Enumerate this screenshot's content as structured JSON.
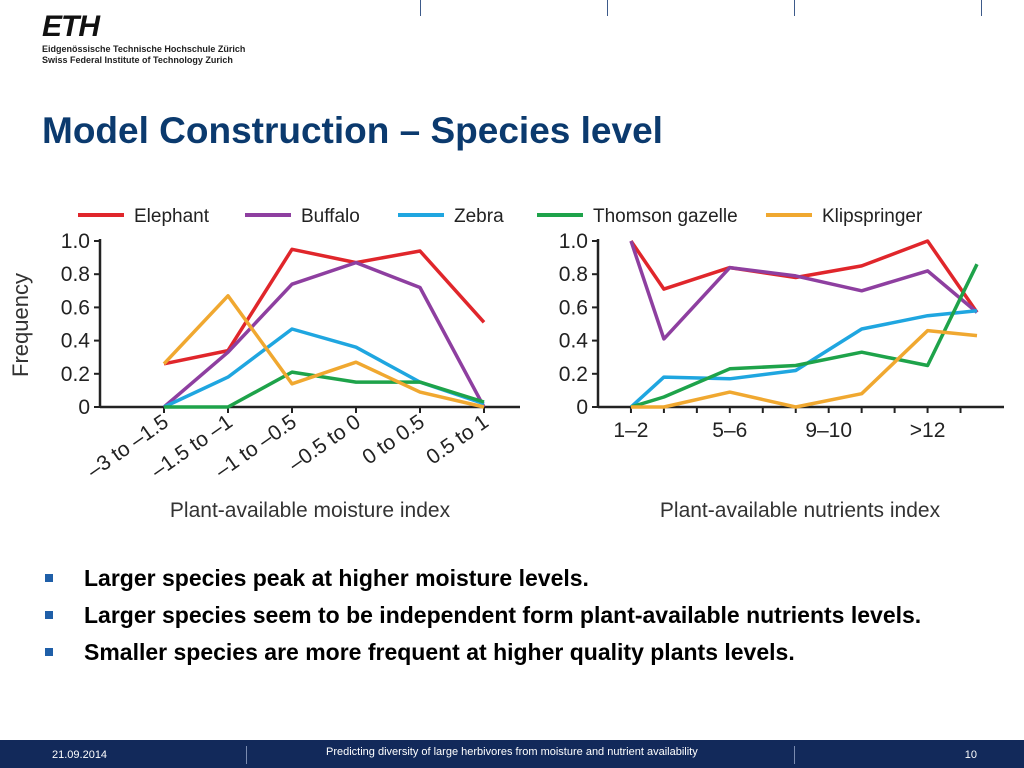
{
  "header": {
    "logo_mark": "ETH",
    "logo_line1": "Eidgenössische Technische Hochschule Zürich",
    "logo_line2": "Swiss Federal Institute of Technology Zurich"
  },
  "slide": {
    "title": "Model Construction – Species level",
    "bullets": [
      "Larger species peak at higher moisture levels.",
      "Larger species seem to be independent form plant-available nutrients levels.",
      "Smaller species are more frequent at higher quality plants levels."
    ]
  },
  "footer": {
    "date": "21.09.2014",
    "title": "Predicting diversity of large herbivores from moisture and nutrient availability",
    "page": "10"
  },
  "chart_data": [
    {
      "type": "line",
      "ylabel": "Frequency",
      "xlabel": "Plant-available moisture index",
      "ylim": [
        0,
        1.0
      ],
      "yticks": [
        "0",
        "0.2",
        "0.4",
        "0.6",
        "0.8",
        "1.0"
      ],
      "categories": [
        "–3 to –1.5",
        "–1.5 to –1",
        "–1 to –0.5",
        "–0.5 to 0",
        "0 to 0.5",
        "0.5 to 1"
      ],
      "legend_position": "top",
      "series": [
        {
          "name": "Elephant",
          "color": "#e0262b",
          "x": [
            0,
            1,
            2,
            3,
            4,
            5
          ],
          "values": [
            0.26,
            0.34,
            0.95,
            0.87,
            0.94,
            0.51
          ]
        },
        {
          "name": "Buffalo",
          "color": "#8e3fa0",
          "x": [
            0,
            1,
            2,
            3,
            4,
            5
          ],
          "values": [
            0.0,
            0.33,
            0.74,
            0.87,
            0.72,
            0.0
          ]
        },
        {
          "name": "Zebra",
          "color": "#1fa6e0",
          "x": [
            0,
            1,
            2,
            3,
            4,
            5
          ],
          "values": [
            0.0,
            0.18,
            0.47,
            0.36,
            0.15,
            0.02
          ]
        },
        {
          "name": "Thomson gazelle",
          "color": "#1ea34a",
          "x": [
            0,
            1,
            2,
            3,
            4,
            5
          ],
          "values": [
            0.0,
            0.0,
            0.21,
            0.15,
            0.15,
            0.03
          ]
        },
        {
          "name": "Klipspringer",
          "color": "#f0a830",
          "x": [
            0,
            1,
            2,
            3,
            4,
            5
          ],
          "values": [
            0.26,
            0.67,
            0.14,
            0.27,
            0.09,
            0.0
          ]
        }
      ]
    },
    {
      "type": "line",
      "xlabel": "Plant-available nutrients index",
      "ylim": [
        0,
        1.0
      ],
      "yticks": [
        "0",
        "0.2",
        "0.4",
        "0.6",
        "0.8",
        "1.0"
      ],
      "categories": [
        "1–2",
        "5–6",
        "9–10",
        ">12"
      ],
      "category_positions": [
        0,
        3,
        6,
        9
      ],
      "xlim": [
        0,
        10
      ],
      "series": [
        {
          "name": "Elephant",
          "color": "#e0262b",
          "x": [
            0,
            1,
            3,
            5,
            7,
            9,
            10.5
          ],
          "values": [
            1.0,
            0.71,
            0.84,
            0.78,
            0.85,
            1.0,
            0.57
          ]
        },
        {
          "name": "Buffalo",
          "color": "#8e3fa0",
          "x": [
            0,
            1,
            3,
            5,
            7,
            9,
            10.5
          ],
          "values": [
            1.0,
            0.41,
            0.84,
            0.79,
            0.7,
            0.82,
            0.57
          ]
        },
        {
          "name": "Zebra",
          "color": "#1fa6e0",
          "x": [
            0,
            1,
            3,
            5,
            7,
            9,
            10.5
          ],
          "values": [
            0.0,
            0.18,
            0.17,
            0.22,
            0.47,
            0.55,
            0.58
          ]
        },
        {
          "name": "Thomson gazelle",
          "color": "#1ea34a",
          "x": [
            0,
            1,
            3,
            5,
            7,
            9,
            10.5
          ],
          "values": [
            0.0,
            0.06,
            0.23,
            0.25,
            0.33,
            0.25,
            0.86
          ]
        },
        {
          "name": "Klipspringer",
          "color": "#f0a830",
          "x": [
            0,
            1,
            3,
            5,
            7,
            9,
            10.5
          ],
          "values": [
            0.0,
            0.0,
            0.09,
            0.0,
            0.08,
            0.46,
            0.43
          ]
        }
      ]
    }
  ]
}
